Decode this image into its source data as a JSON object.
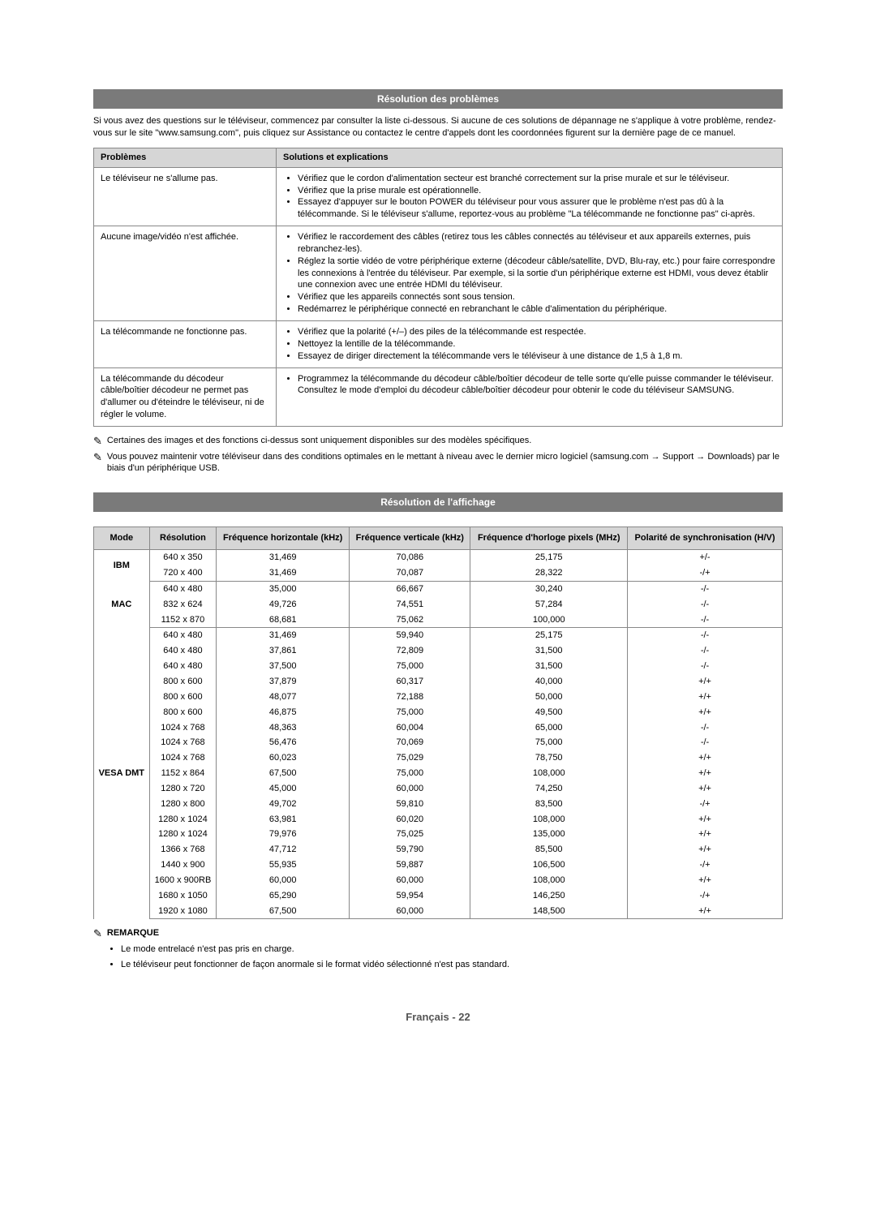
{
  "troubleshooting": {
    "header": "Résolution des problèmes",
    "intro": "Si vous avez des questions sur le téléviseur, commencez par consulter la liste ci-dessous. Si aucune de ces solutions de dépannage ne s'applique à votre problème, rendez-vous sur le site \"www.samsung.com\", puis cliquez sur Assistance ou contactez le centre d'appels dont les coordonnées figurent sur la dernière page de ce manuel.",
    "col_problem": "Problèmes",
    "col_solution": "Solutions et explications",
    "rows": [
      {
        "problem": "Le téléviseur ne s'allume pas.",
        "solutions": [
          "Vérifiez que le cordon d'alimentation secteur est branché correctement sur la prise murale et sur le téléviseur.",
          "Vérifiez que la prise murale est opérationnelle.",
          "Essayez d'appuyer sur le bouton POWER du téléviseur pour vous assurer que le problème n'est pas dû à la télécommande. Si le téléviseur s'allume, reportez-vous au problème \"La télécommande ne fonctionne pas\" ci-après."
        ]
      },
      {
        "problem": "Aucune image/vidéo n'est affichée.",
        "solutions": [
          "Vérifiez le raccordement des câbles (retirez tous les câbles connectés au téléviseur et aux appareils externes, puis rebranchez-les).",
          "Réglez la sortie vidéo de votre périphérique externe (décodeur câble/satellite, DVD, Blu-ray, etc.) pour faire correspondre les connexions à l'entrée du téléviseur. Par exemple, si la sortie d'un périphérique externe est HDMI, vous devez établir une connexion avec une entrée HDMI du téléviseur.",
          "Vérifiez que les appareils connectés sont sous tension.",
          "Redémarrez le périphérique connecté en rebranchant le câble d'alimentation du périphérique."
        ]
      },
      {
        "problem": "La télécommande ne fonctionne pas.",
        "solutions": [
          "Vérifiez que la polarité (+/–) des piles de la télécommande est respectée.",
          "Nettoyez la lentille de la télécommande.",
          "Essayez de diriger directement la télécommande vers le téléviseur à une distance de 1,5 à 1,8 m."
        ]
      },
      {
        "problem": "La télécommande du décodeur câble/boîtier décodeur ne permet pas d'allumer ou d'éteindre le téléviseur, ni de régler le volume.",
        "solutions": [
          "Programmez la télécommande du décodeur câble/boîtier décodeur de telle sorte qu'elle puisse commander le téléviseur. Consultez le mode d'emploi du décodeur câble/boîtier décodeur pour obtenir le code du téléviseur SAMSUNG."
        ]
      }
    ],
    "note1": "Certaines des images et des fonctions ci-dessus sont uniquement disponibles sur des modèles spécifiques.",
    "note2": "Vous pouvez maintenir votre téléviseur dans des conditions optimales en le mettant à niveau avec le dernier micro logiciel (samsung.com → Support → Downloads) par le biais d'un périphérique USB."
  },
  "display": {
    "header": "Résolution de l'affichage",
    "columns": [
      "Mode",
      "Résolution",
      "Fréquence horizontale (kHz)",
      "Fréquence verticale (kHz)",
      "Fréquence d'horloge pixels (MHz)",
      "Polarité de synchronisation (H/V)"
    ],
    "groups": [
      {
        "mode": "IBM",
        "rows": [
          [
            "640 x 350",
            "31,469",
            "70,086",
            "25,175",
            "+/-"
          ],
          [
            "720 x 400",
            "31,469",
            "70,087",
            "28,322",
            "-/+"
          ]
        ]
      },
      {
        "mode": "MAC",
        "rows": [
          [
            "640 x 480",
            "35,000",
            "66,667",
            "30,240",
            "-/-"
          ],
          [
            "832 x 624",
            "49,726",
            "74,551",
            "57,284",
            "-/-"
          ],
          [
            "1152 x 870",
            "68,681",
            "75,062",
            "100,000",
            "-/-"
          ]
        ]
      },
      {
        "mode": "VESA DMT",
        "rows": [
          [
            "640 x 480",
            "31,469",
            "59,940",
            "25,175",
            "-/-"
          ],
          [
            "640 x 480",
            "37,861",
            "72,809",
            "31,500",
            "-/-"
          ],
          [
            "640 x 480",
            "37,500",
            "75,000",
            "31,500",
            "-/-"
          ],
          [
            "800 x 600",
            "37,879",
            "60,317",
            "40,000",
            "+/+"
          ],
          [
            "800 x 600",
            "48,077",
            "72,188",
            "50,000",
            "+/+"
          ],
          [
            "800 x 600",
            "46,875",
            "75,000",
            "49,500",
            "+/+"
          ],
          [
            "1024 x 768",
            "48,363",
            "60,004",
            "65,000",
            "-/-"
          ],
          [
            "1024 x 768",
            "56,476",
            "70,069",
            "75,000",
            "-/-"
          ],
          [
            "1024 x 768",
            "60,023",
            "75,029",
            "78,750",
            "+/+"
          ],
          [
            "1152 x 864",
            "67,500",
            "75,000",
            "108,000",
            "+/+"
          ],
          [
            "1280 x 720",
            "45,000",
            "60,000",
            "74,250",
            "+/+"
          ],
          [
            "1280 x 800",
            "49,702",
            "59,810",
            "83,500",
            "-/+"
          ],
          [
            "1280 x 1024",
            "63,981",
            "60,020",
            "108,000",
            "+/+"
          ],
          [
            "1280 x 1024",
            "79,976",
            "75,025",
            "135,000",
            "+/+"
          ],
          [
            "1366 x 768",
            "47,712",
            "59,790",
            "85,500",
            "+/+"
          ],
          [
            "1440 x 900",
            "55,935",
            "59,887",
            "106,500",
            "-/+"
          ],
          [
            "1600 x 900RB",
            "60,000",
            "60,000",
            "108,000",
            "+/+"
          ],
          [
            "1680 x 1050",
            "65,290",
            "59,954",
            "146,250",
            "-/+"
          ],
          [
            "1920 x 1080",
            "67,500",
            "60,000",
            "148,500",
            "+/+"
          ]
        ]
      }
    ]
  },
  "remark": {
    "title": "REMARQUE",
    "items": [
      "Le mode entrelacé n'est pas pris en charge.",
      "Le téléviseur peut fonctionner de façon anormale si le format vidéo sélectionné n'est pas standard."
    ]
  },
  "footer": "Français - 22",
  "style": {
    "header_bg": "#7a7a7a",
    "header_fg": "#ffffff",
    "th_bg": "#d6d6d6",
    "border": "#888888",
    "body_font_size": 11
  }
}
